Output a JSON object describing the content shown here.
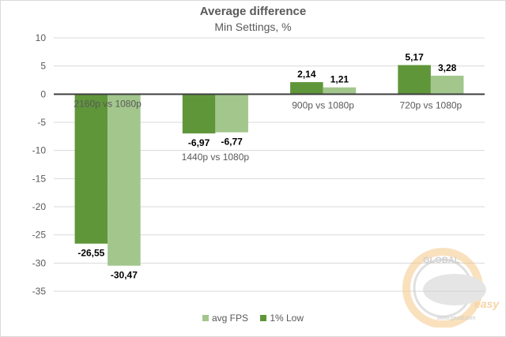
{
  "chart_data": {
    "type": "bar",
    "title": "Average difference",
    "subtitle": "Min Settings, %",
    "xlabel": "",
    "ylabel": "",
    "ylim": [
      -35,
      10
    ],
    "yticks": [
      10,
      5,
      0,
      -5,
      -10,
      -15,
      -20,
      -25,
      -30,
      -35
    ],
    "grid": true,
    "categories": [
      "2160p vs 1080p",
      "1440p vs 1080p",
      "900p vs 1080p",
      "720p vs 1080p"
    ],
    "series": [
      {
        "name": "1% Low",
        "color": "#5f963a",
        "values": [
          -26.55,
          -6.97,
          2.14,
          5.17
        ],
        "labels": [
          "-26,55",
          "-6,97",
          "2,14",
          "5,17"
        ]
      },
      {
        "name": "avg FPS",
        "color": "#a2c68c",
        "values": [
          -30.47,
          -6.77,
          1.21,
          3.28
        ],
        "labels": [
          "-30,47",
          "-6,77",
          "1,21",
          "3,28"
        ]
      }
    ],
    "legend": {
      "position": "bottom",
      "entries": [
        "avg FPS",
        "1% Low"
      ]
    }
  },
  "watermark": {
    "top": "GLOBAL",
    "brand": "easy",
    "url": "www.gecid.com"
  }
}
